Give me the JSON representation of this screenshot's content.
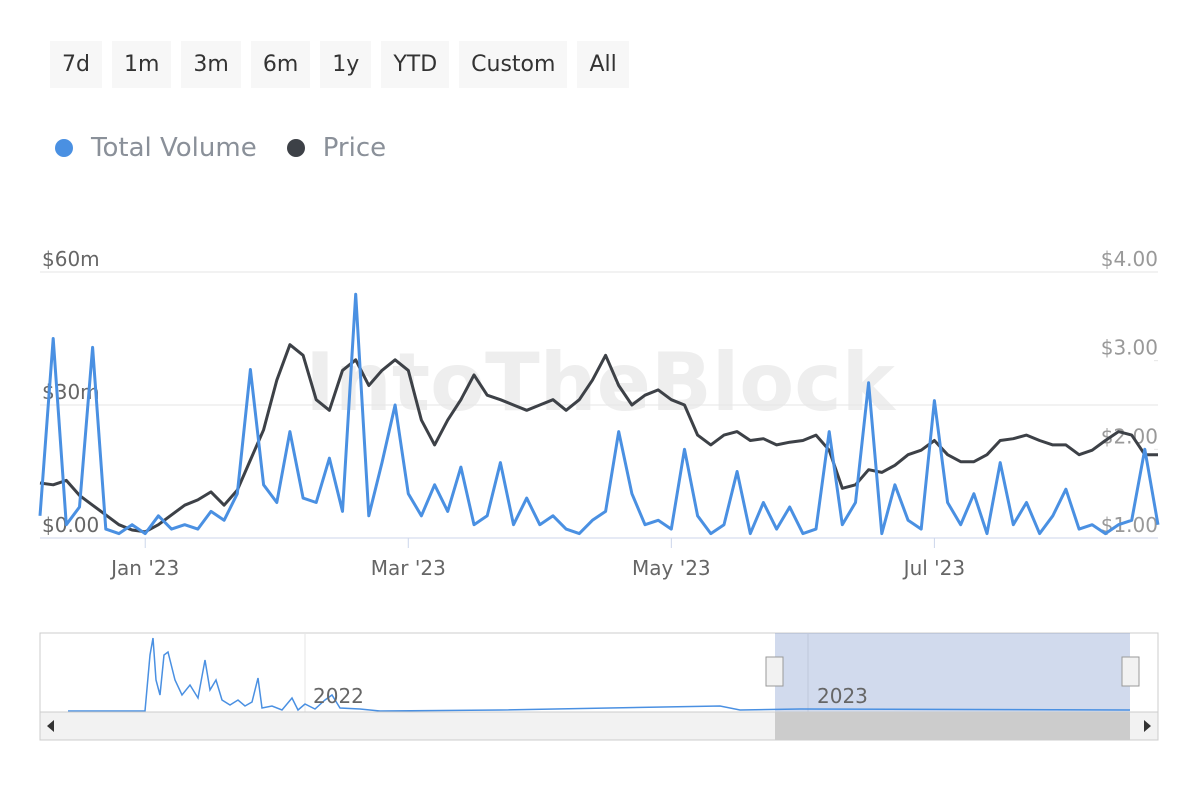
{
  "range_buttons": [
    "7d",
    "1m",
    "3m",
    "6m",
    "1y",
    "YTD",
    "Custom",
    "All"
  ],
  "watermark": "IntoTheBlock",
  "navigator": {
    "labels": [
      "2022",
      "2023"
    ]
  },
  "chart_data": {
    "type": "line",
    "categories": [
      null,
      null,
      null,
      null,
      null,
      null,
      null,
      null,
      "Jan '23",
      null,
      null,
      null,
      null,
      null,
      null,
      null,
      null,
      null,
      null,
      null,
      null,
      null,
      null,
      null,
      null,
      null,
      null,
      null,
      "Mar '23",
      null,
      null,
      null,
      null,
      null,
      null,
      null,
      null,
      null,
      null,
      null,
      null,
      null,
      null,
      null,
      null,
      null,
      null,
      null,
      "May '23",
      null,
      null,
      null,
      null,
      null,
      null,
      null,
      null,
      null,
      null,
      null,
      null,
      null,
      null,
      null,
      null,
      null,
      null,
      null,
      "Jul '23",
      null,
      null,
      null,
      null,
      null,
      null,
      null,
      null,
      null,
      null,
      null,
      null,
      null,
      null,
      null,
      null,
      null
    ],
    "series": [
      {
        "name": "Total Volume",
        "color": "#4a90e2",
        "axis": "y",
        "values": [
          5,
          45,
          3,
          7,
          43,
          2,
          1,
          3,
          1,
          5,
          2,
          3,
          2,
          6,
          4,
          10,
          38,
          12,
          8,
          24,
          9,
          8,
          18,
          6,
          55,
          5,
          17,
          30,
          10,
          5,
          12,
          6,
          16,
          3,
          5,
          17,
          3,
          9,
          3,
          5,
          2,
          1,
          4,
          6,
          24,
          10,
          3,
          4,
          2,
          20,
          5,
          1,
          3,
          15,
          1,
          8,
          2,
          7,
          1,
          2,
          24,
          3,
          8,
          35,
          1,
          12,
          4,
          2,
          31,
          8,
          3,
          10,
          1,
          17,
          3,
          8,
          1,
          5,
          11,
          2,
          3,
          1,
          3,
          4,
          20,
          3
        ]
      },
      {
        "name": "Price",
        "color": "#3d4147",
        "axis": "y2",
        "values": [
          1.62,
          1.6,
          1.65,
          1.48,
          1.37,
          1.26,
          1.15,
          1.09,
          1.07,
          1.15,
          1.26,
          1.37,
          1.43,
          1.52,
          1.37,
          1.54,
          1.88,
          2.22,
          2.78,
          3.18,
          3.06,
          2.56,
          2.44,
          2.89,
          3.01,
          2.72,
          2.89,
          3.01,
          2.89,
          2.33,
          2.05,
          2.33,
          2.56,
          2.84,
          2.61,
          2.56,
          2.5,
          2.44,
          2.5,
          2.56,
          2.44,
          2.56,
          2.78,
          3.06,
          2.72,
          2.5,
          2.61,
          2.67,
          2.56,
          2.5,
          2.16,
          2.05,
          2.16,
          2.2,
          2.1,
          2.12,
          2.05,
          2.08,
          2.1,
          2.16,
          1.99,
          1.56,
          1.6,
          1.77,
          1.74,
          1.82,
          1.94,
          1.99,
          2.1,
          1.94,
          1.86,
          1.86,
          1.94,
          2.1,
          2.12,
          2.16,
          2.1,
          2.05,
          2.05,
          1.94,
          1.99,
          2.1,
          2.2,
          2.16,
          1.94,
          1.94
        ]
      }
    ],
    "ylim": [
      0,
      60
    ],
    "yticks": [
      {
        "value": 0,
        "label": "$0.00"
      },
      {
        "value": 30,
        "label": "$30m"
      },
      {
        "value": 60,
        "label": "$60m"
      }
    ],
    "y2lim": [
      1,
      4
    ],
    "y2ticks": [
      {
        "value": 1,
        "label": "$1.00"
      },
      {
        "value": 2,
        "label": "$2.00"
      },
      {
        "value": 3,
        "label": "$3.00"
      },
      {
        "value": 4,
        "label": "$4.00"
      }
    ],
    "grid": true,
    "legend": "top-left"
  }
}
